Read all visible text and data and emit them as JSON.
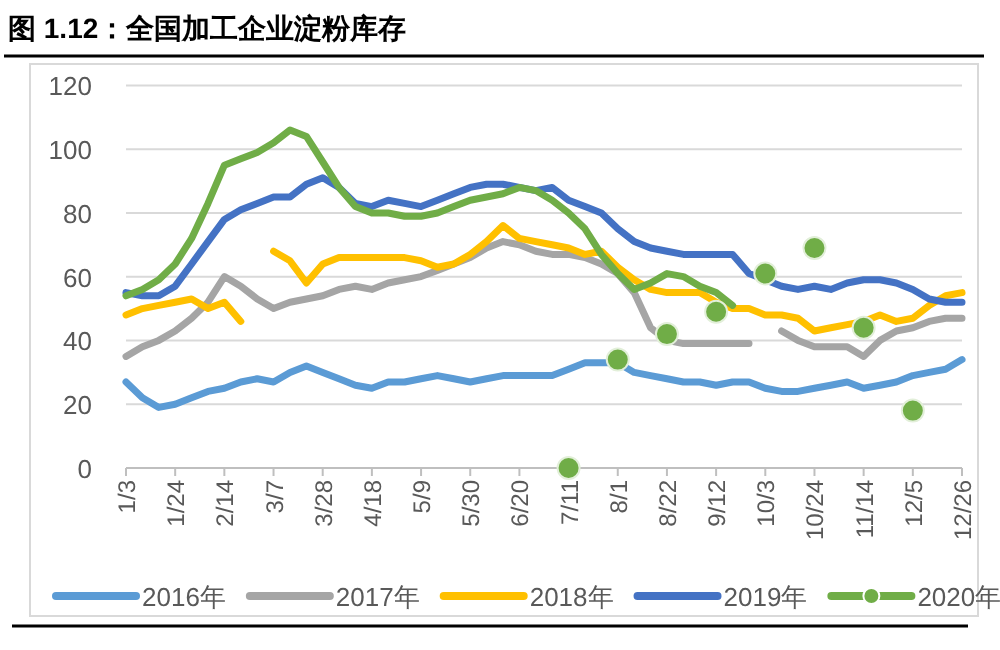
{
  "chart_data": {
    "type": "line",
    "title": "图 1.12：全国加工企业淀粉库存",
    "categories": [
      "1/3",
      null,
      null,
      "1/24",
      null,
      null,
      "2/14",
      null,
      null,
      "3/7",
      null,
      null,
      "3/28",
      null,
      null,
      "4/18",
      null,
      null,
      "5/9",
      null,
      null,
      "5/30",
      null,
      null,
      "6/20",
      null,
      null,
      "7/11",
      null,
      null,
      "8/1",
      null,
      null,
      "8/22",
      null,
      null,
      "9/12",
      null,
      null,
      "10/3",
      null,
      null,
      "10/24",
      null,
      null,
      "11/14",
      null,
      null,
      "12/5",
      null,
      null,
      "12/26"
    ],
    "ylim": [
      0,
      120
    ],
    "yticks": [
      0,
      20,
      40,
      60,
      80,
      100,
      120
    ],
    "grid": "y",
    "legend": "bottom",
    "line_style": "solid",
    "series": [
      {
        "name": "2016年",
        "color": "#5b9bd5",
        "values": [
          27,
          22,
          19,
          20,
          22,
          24,
          25,
          27,
          28,
          27,
          30,
          32,
          30,
          28,
          26,
          25,
          27,
          27,
          28,
          29,
          28,
          27,
          28,
          29,
          29,
          29,
          29,
          31,
          33,
          33,
          33,
          30,
          29,
          28,
          27,
          27,
          26,
          27,
          27,
          25,
          24,
          24,
          25,
          26,
          27,
          25,
          26,
          27,
          29,
          30,
          31,
          34
        ]
      },
      {
        "name": "2017年",
        "color": "#a5a5a5",
        "values": [
          35,
          38,
          40,
          43,
          47,
          52,
          60,
          57,
          53,
          50,
          52,
          53,
          54,
          56,
          57,
          56,
          58,
          59,
          60,
          62,
          64,
          66,
          69,
          71,
          70,
          68,
          67,
          67,
          66,
          64,
          61,
          55,
          44,
          40,
          39,
          39,
          39,
          39,
          39,
          null,
          43,
          40,
          38,
          38,
          38,
          35,
          40,
          43,
          44,
          46,
          47,
          47
        ]
      },
      {
        "name": "2018年",
        "color": "#ffc000",
        "values": [
          48,
          50,
          51,
          52,
          53,
          50,
          52,
          46,
          null,
          68,
          65,
          58,
          64,
          66,
          66,
          66,
          66,
          66,
          65,
          63,
          64,
          67,
          71,
          76,
          72,
          71,
          70,
          69,
          67,
          68,
          63,
          59,
          56,
          55,
          55,
          55,
          52,
          50,
          50,
          48,
          48,
          47,
          43,
          44,
          45,
          46,
          48,
          46,
          47,
          51,
          54,
          55
        ]
      },
      {
        "name": "2019年",
        "color": "#4472c4",
        "values": [
          55,
          54,
          54,
          57,
          64,
          71,
          78,
          81,
          83,
          85,
          85,
          89,
          91,
          88,
          83,
          82,
          84,
          83,
          82,
          84,
          86,
          88,
          89,
          89,
          88,
          87,
          88,
          84,
          82,
          80,
          75,
          71,
          69,
          68,
          67,
          67,
          67,
          67,
          61,
          59,
          57,
          56,
          57,
          56,
          58,
          59,
          59,
          58,
          56,
          53,
          52,
          52
        ]
      },
      {
        "name": "2020年",
        "color": "#70ad47",
        "values": [
          54,
          56,
          59,
          64,
          72,
          83,
          95,
          97,
          99,
          102,
          106,
          104,
          96,
          88,
          82,
          80,
          80,
          79,
          79,
          80,
          82,
          84,
          85,
          86,
          88,
          87,
          84,
          80,
          75,
          67,
          61,
          56,
          58,
          61,
          60,
          57,
          55,
          51,
          null,
          null,
          null,
          null,
          null,
          null,
          null,
          null,
          null,
          null,
          null,
          null,
          null,
          null
        ]
      },
      {
        "type": "scatter",
        "color": "#70ad47",
        "marker": "circle",
        "values": [
          null,
          null,
          null,
          null,
          null,
          null,
          null,
          null,
          null,
          null,
          null,
          null,
          null,
          null,
          null,
          null,
          null,
          null,
          null,
          null,
          null,
          null,
          null,
          null,
          null,
          null,
          null,
          0,
          null,
          null,
          34,
          null,
          null,
          42,
          null,
          null,
          49,
          null,
          null,
          61,
          null,
          null,
          69,
          null,
          null,
          44,
          null,
          null,
          18,
          null,
          null,
          null
        ]
      }
    ]
  }
}
